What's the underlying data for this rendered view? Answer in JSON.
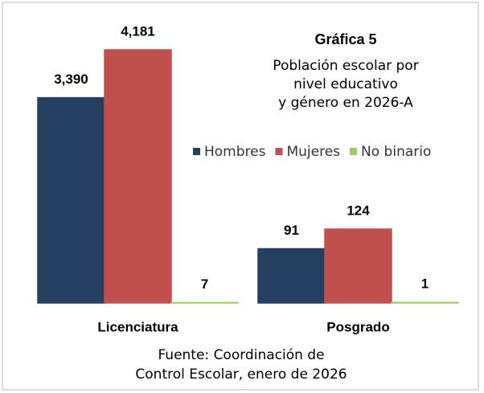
{
  "title": "Gráfica 5",
  "subtitle": [
    "Población escolar por",
    "nivel educativo",
    "y género en 2026-A"
  ],
  "source": [
    "Fuente: Coordinación de",
    "Control Escolar, enero de 2026"
  ],
  "chart_data": [
    {
      "type": "bar",
      "categories": [
        "Licenciatura"
      ],
      "series": [
        {
          "name": "Hombres",
          "color": "#243f60",
          "values": [
            3390
          ],
          "value_labels": [
            "3,390"
          ]
        },
        {
          "name": "Mujeres",
          "color": "#c0504d",
          "values": [
            4181
          ],
          "value_labels": [
            "4,181"
          ]
        },
        {
          "name": "No binario",
          "color": "#9bcd60",
          "values": [
            7
          ]
        }
      ]
    },
    {
      "type": "bar",
      "categories": [
        "Posgrado"
      ],
      "series": [
        {
          "color": "#243f60",
          "values": [
            91
          ]
        },
        {
          "color": "#c0504d",
          "values": [
            124
          ]
        },
        {
          "color": "#9bcd60",
          "values": [
            1
          ]
        }
      ]
    }
  ]
}
